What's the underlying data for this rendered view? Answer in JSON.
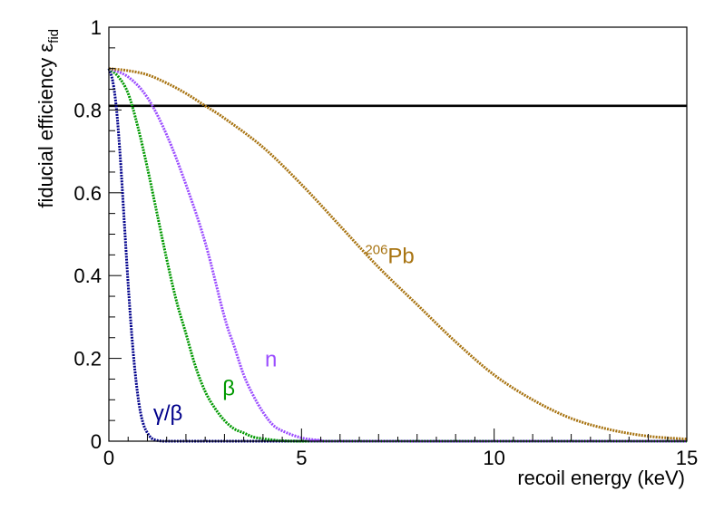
{
  "chart_data": {
    "type": "line",
    "title": "",
    "xlabel": "recoil energy (keV)",
    "ylabel_main": "fiducial efficiency ε",
    "ylabel_subscript": "fid",
    "xlim": [
      0,
      15
    ],
    "ylim": [
      0,
      1
    ],
    "x_ticks": [
      {
        "value": 0,
        "label": "0"
      },
      {
        "value": 5,
        "label": "5"
      },
      {
        "value": 10,
        "label": "10"
      },
      {
        "value": 15,
        "label": "15"
      }
    ],
    "y_ticks": [
      {
        "value": 0,
        "label": "0"
      },
      {
        "value": 0.2,
        "label": "0.2"
      },
      {
        "value": 0.4,
        "label": "0.4"
      },
      {
        "value": 0.6,
        "label": "0.6"
      },
      {
        "value": 0.8,
        "label": "0.8"
      },
      {
        "value": 1,
        "label": "1"
      }
    ],
    "reference_line": {
      "name": "threshold",
      "y": 0.81,
      "color": "#000000"
    },
    "series": [
      {
        "name": "gamma-beta",
        "label": "γ/β",
        "label_sup": "",
        "color": "#00008b",
        "label_at": [
          1.15,
          0.05
        ],
        "x": [
          0.0,
          0.1,
          0.2,
          0.3,
          0.4,
          0.5,
          0.6,
          0.7,
          0.8,
          0.9,
          1.0,
          1.1,
          1.2,
          1.3,
          1.4,
          1.5,
          2.0,
          4.0,
          15.0
        ],
        "y": [
          0.9,
          0.87,
          0.8,
          0.68,
          0.53,
          0.38,
          0.25,
          0.15,
          0.08,
          0.04,
          0.02,
          0.008,
          0.003,
          0.001,
          0.0,
          0.0,
          0.0,
          0.0,
          0.0
        ]
      },
      {
        "name": "beta",
        "label": "β",
        "label_sup": "",
        "color": "#009900",
        "label_at": [
          2.95,
          0.11
        ],
        "x": [
          0.0,
          0.25,
          0.5,
          0.75,
          1.0,
          1.25,
          1.5,
          1.75,
          2.0,
          2.25,
          2.5,
          2.75,
          3.0,
          3.25,
          3.5,
          3.75,
          4.0,
          4.25,
          4.5,
          5.0,
          6.0,
          15.0
        ],
        "y": [
          0.9,
          0.88,
          0.84,
          0.76,
          0.66,
          0.55,
          0.44,
          0.34,
          0.26,
          0.18,
          0.12,
          0.08,
          0.05,
          0.03,
          0.02,
          0.01,
          0.006,
          0.003,
          0.001,
          0.0,
          0.0,
          0.0
        ]
      },
      {
        "name": "neutron",
        "label": "n",
        "label_sup": "",
        "color": "#9b4dff",
        "label_at": [
          4.05,
          0.18
        ],
        "x": [
          0.0,
          0.5,
          1.0,
          1.5,
          2.0,
          2.5,
          3.0,
          3.25,
          3.5,
          3.75,
          4.0,
          4.25,
          4.5,
          5.0,
          5.5,
          6.0,
          15.0
        ],
        "y": [
          0.9,
          0.88,
          0.83,
          0.74,
          0.62,
          0.48,
          0.3,
          0.23,
          0.16,
          0.11,
          0.07,
          0.04,
          0.025,
          0.008,
          0.002,
          0.0,
          0.0
        ]
      },
      {
        "name": "lead-206",
        "label": "Pb",
        "label_sup": "206",
        "color": "#a87412",
        "label_at": [
          6.65,
          0.43
        ],
        "x": [
          0.0,
          0.5,
          1.0,
          1.5,
          2.0,
          2.5,
          3.0,
          4.0,
          5.0,
          6.0,
          7.0,
          8.0,
          9.0,
          10.0,
          11.0,
          12.0,
          13.0,
          14.0,
          15.0
        ],
        "y": [
          0.9,
          0.895,
          0.885,
          0.865,
          0.84,
          0.81,
          0.78,
          0.71,
          0.62,
          0.52,
          0.42,
          0.33,
          0.24,
          0.16,
          0.1,
          0.055,
          0.028,
          0.012,
          0.005
        ]
      }
    ]
  }
}
